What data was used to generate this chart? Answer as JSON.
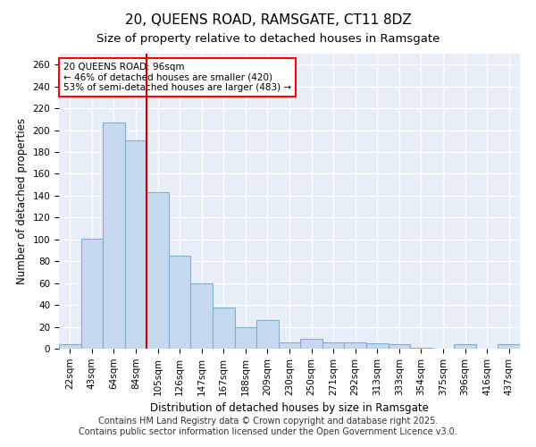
{
  "title": "20, QUEENS ROAD, RAMSGATE, CT11 8DZ",
  "subtitle": "Size of property relative to detached houses in Ramsgate",
  "xlabel": "Distribution of detached houses by size in Ramsgate",
  "ylabel": "Number of detached properties",
  "categories": [
    "22sqm",
    "43sqm",
    "64sqm",
    "84sqm",
    "105sqm",
    "126sqm",
    "147sqm",
    "167sqm",
    "188sqm",
    "209sqm",
    "230sqm",
    "250sqm",
    "271sqm",
    "292sqm",
    "313sqm",
    "333sqm",
    "354sqm",
    "375sqm",
    "396sqm",
    "416sqm",
    "437sqm"
  ],
  "values": [
    4,
    101,
    207,
    191,
    143,
    85,
    60,
    38,
    20,
    26,
    6,
    9,
    6,
    6,
    5,
    4,
    1,
    0,
    4,
    0,
    4
  ],
  "bar_color": "#c5d9ef",
  "bar_edge_color": "#7bafd4",
  "annotation_text": "20 QUEENS ROAD: 96sqm\n← 46% of detached houses are smaller (420)\n53% of semi-detached houses are larger (483) →",
  "vline_pos": 3.5,
  "vline_color": "#cc0000",
  "ylim": [
    0,
    270
  ],
  "yticks": [
    0,
    20,
    40,
    60,
    80,
    100,
    120,
    140,
    160,
    180,
    200,
    220,
    240,
    260
  ],
  "footer_line1": "Contains HM Land Registry data © Crown copyright and database right 2025.",
  "footer_line2": "Contains public sector information licensed under the Open Government Licence v3.0.",
  "fig_bg_color": "#ffffff",
  "plot_bg_color": "#e8eef7",
  "grid_color": "#ffffff",
  "title_fontsize": 11,
  "subtitle_fontsize": 9.5,
  "axis_label_fontsize": 8.5,
  "tick_fontsize": 7.5,
  "annotation_fontsize": 7.5,
  "footer_fontsize": 7
}
